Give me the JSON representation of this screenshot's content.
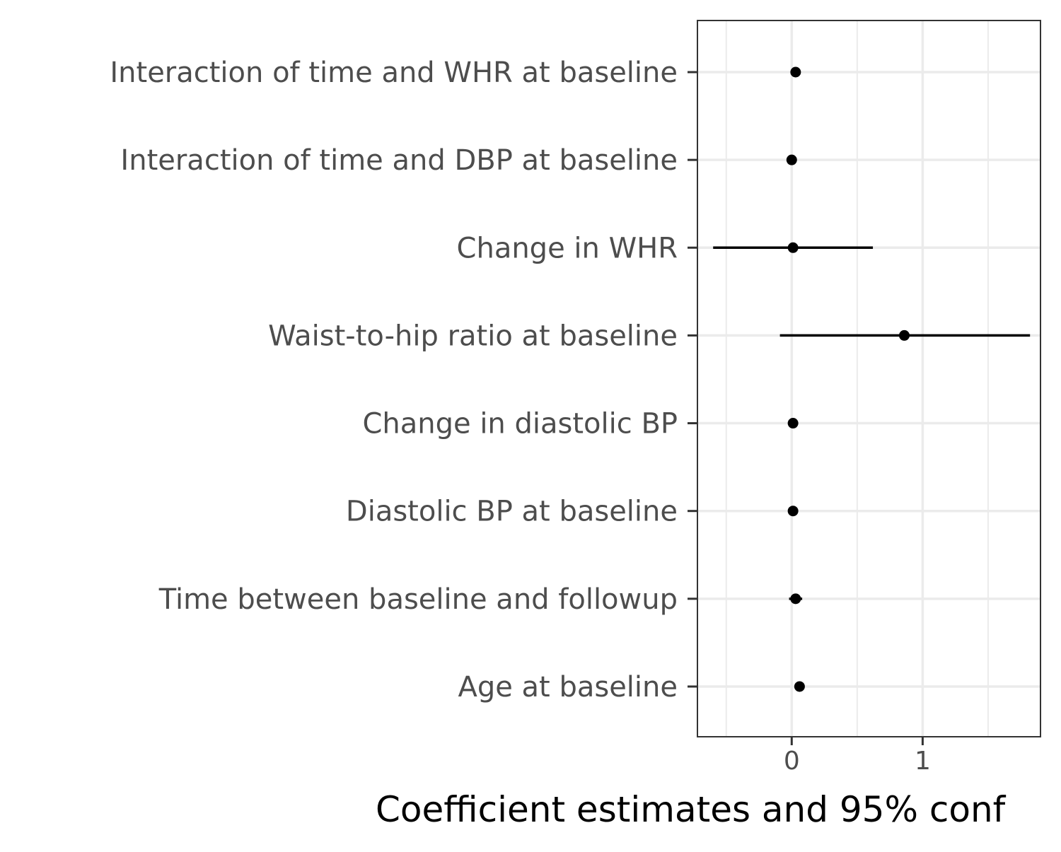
{
  "chart_data": {
    "type": "scatter",
    "title": "",
    "xlabel": "Coefficient estimates and 95% conf",
    "ylabel": "",
    "xlim": [
      -0.72,
      1.9
    ],
    "xticks": [
      0,
      1
    ],
    "xtick_labels": [
      "0",
      "1"
    ],
    "grid": true,
    "colors": {
      "point": "#000000",
      "grid": "#ebebeb",
      "frame": "#333333",
      "tick_label": "#4d4d4d"
    },
    "terms": [
      {
        "label": "Interaction of time and WHR at baseline",
        "estimate": 0.03,
        "lower": 0.01,
        "upper": 0.05
      },
      {
        "label": "Interaction of time and DBP at baseline",
        "estimate": 0.0,
        "lower": -0.01,
        "upper": 0.01
      },
      {
        "label": "Change in WHR",
        "estimate": 0.01,
        "lower": -0.6,
        "upper": 0.62
      },
      {
        "label": "Waist-to-hip ratio at baseline",
        "estimate": 0.86,
        "lower": -0.09,
        "upper": 1.82
      },
      {
        "label": "Change in diastolic BP",
        "estimate": 0.01,
        "lower": 0.0,
        "upper": 0.02
      },
      {
        "label": "Diastolic BP at baseline",
        "estimate": 0.01,
        "lower": 0.0,
        "upper": 0.02
      },
      {
        "label": "Time between baseline and followup",
        "estimate": 0.03,
        "lower": -0.02,
        "upper": 0.08
      },
      {
        "label": "Age at baseline",
        "estimate": 0.06,
        "lower": 0.05,
        "upper": 0.07
      }
    ]
  }
}
